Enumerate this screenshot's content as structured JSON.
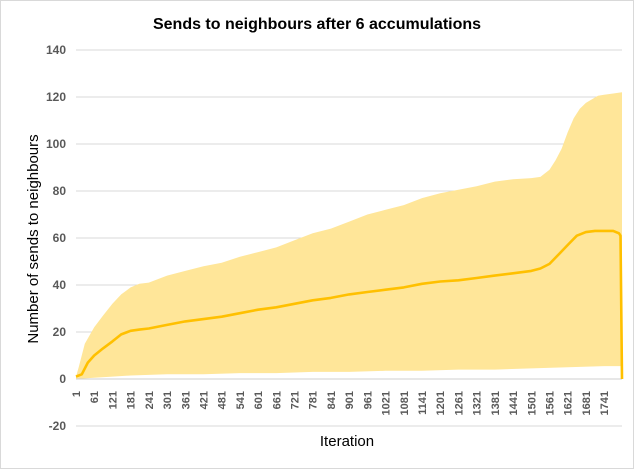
{
  "chart_data": {
    "type": "area",
    "title": "Sends to neighbours after 6 accumulations",
    "xlabel": "Iteration",
    "ylabel": "Number of sends to neighbours",
    "ylim": [
      -20,
      140
    ],
    "yticks": [
      -20,
      0,
      20,
      40,
      60,
      80,
      100,
      120,
      140
    ],
    "xlim": [
      1,
      1800
    ],
    "xticks": [
      1,
      61,
      121,
      181,
      241,
      301,
      361,
      421,
      481,
      541,
      601,
      661,
      721,
      781,
      841,
      901,
      961,
      1021,
      1081,
      1141,
      1201,
      1261,
      1321,
      1381,
      1441,
      1501,
      1561,
      1621,
      1681,
      1741
    ],
    "grid": "horizontal",
    "legend": "none",
    "colors": {
      "band": "#ffe699",
      "mean": "#ffc000",
      "grid": "#d9d9d9"
    },
    "series": [
      {
        "kind": "line",
        "x": [
          1,
          20,
          40,
          61,
          90,
          121,
          150,
          181,
          210,
          241,
          301,
          361,
          421,
          481,
          541,
          601,
          661,
          721,
          781,
          841,
          901,
          961,
          1021,
          1081,
          1141,
          1201,
          1261,
          1321,
          1381,
          1441,
          1501,
          1531,
          1561,
          1591,
          1621,
          1651,
          1681,
          1711,
          1741,
          1771,
          1790,
          1795,
          1800
        ],
        "values": [
          1,
          2,
          7,
          10,
          13,
          16,
          19,
          20.5,
          21,
          21.5,
          23,
          24.5,
          25.5,
          26.5,
          28,
          29.5,
          30.5,
          32,
          33.5,
          34.5,
          36,
          37,
          38,
          39,
          40.5,
          41.5,
          42,
          43,
          44,
          45,
          46,
          47,
          49,
          53,
          57,
          61,
          62.5,
          63,
          63,
          63,
          62,
          61,
          0
        ]
      },
      {
        "kind": "band-upper",
        "x": [
          1,
          10,
          30,
          61,
          90,
          121,
          150,
          181,
          210,
          241,
          301,
          361,
          421,
          481,
          541,
          601,
          661,
          721,
          781,
          841,
          901,
          961,
          1021,
          1081,
          1141,
          1201,
          1261,
          1321,
          1381,
          1441,
          1501,
          1531,
          1561,
          1581,
          1601,
          1621,
          1641,
          1661,
          1681,
          1701,
          1721,
          1741,
          1771,
          1800
        ],
        "values": [
          1,
          5,
          15,
          22,
          27,
          32,
          36,
          39,
          40.5,
          41,
          44,
          46,
          48,
          49.5,
          52,
          54,
          56,
          59,
          62,
          64,
          67,
          70,
          72,
          74,
          77,
          79,
          80.5,
          82,
          84,
          85,
          85.5,
          86,
          89,
          93,
          98,
          105,
          111,
          115,
          117.5,
          119,
          120.5,
          121,
          121.5,
          122
        ]
      },
      {
        "kind": "band-lower",
        "x": [
          1,
          61,
          121,
          181,
          301,
          421,
          541,
          661,
          781,
          901,
          1021,
          1141,
          1261,
          1381,
          1501,
          1621,
          1741,
          1800
        ],
        "values": [
          0,
          0.5,
          1,
          1.5,
          2,
          2,
          2.5,
          2.5,
          3,
          3,
          3.5,
          3.5,
          4,
          4,
          4.5,
          5,
          5.5,
          5.5
        ]
      }
    ]
  }
}
